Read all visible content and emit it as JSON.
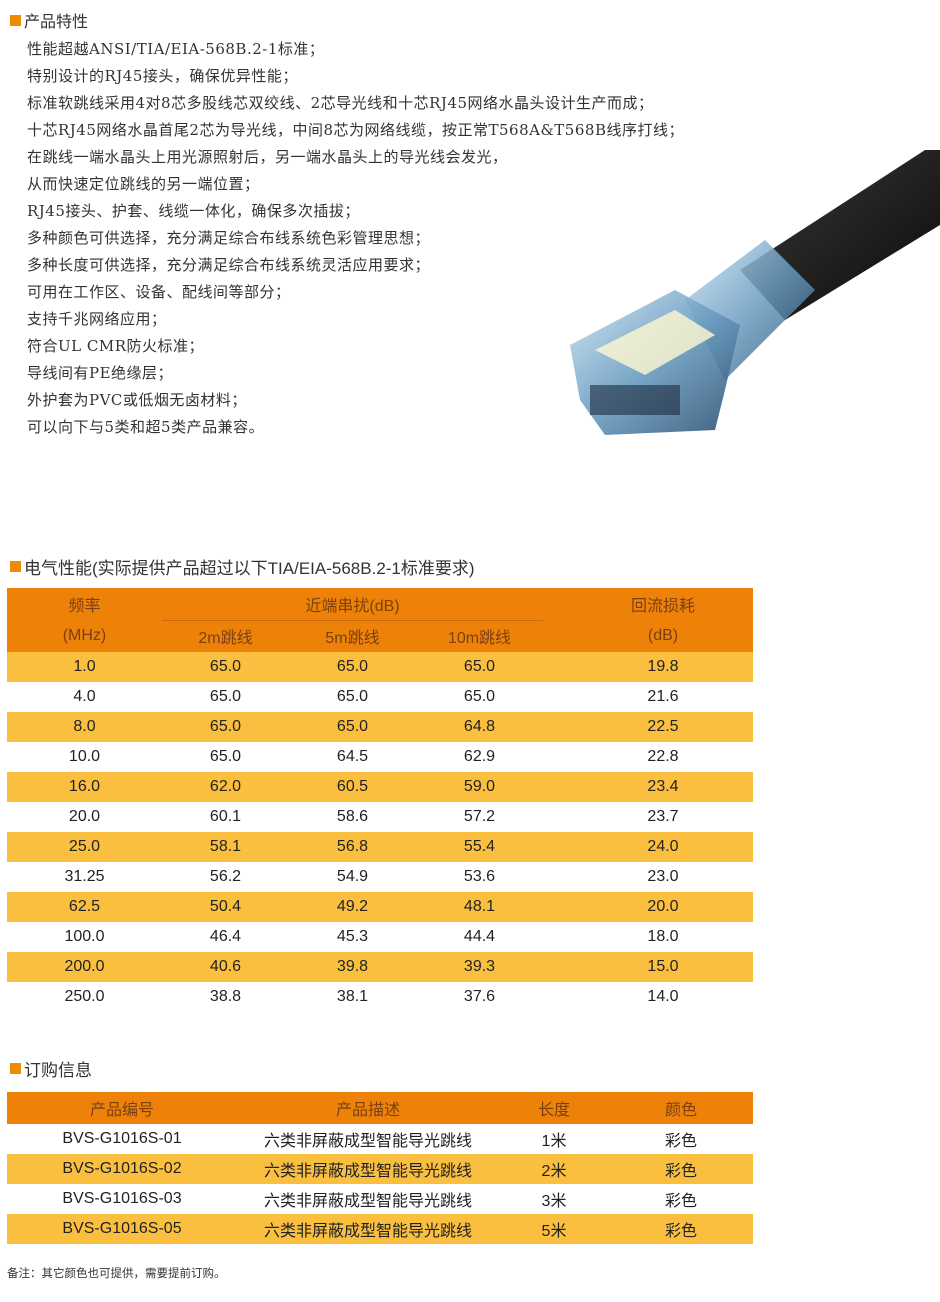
{
  "features": {
    "title": "产品特性",
    "items": [
      "性能超越ANSI/TIA/EIA-568B.2-1标准；",
      "特别设计的RJ45接头，确保优异性能；",
      "标准软跳线采用4对8芯多股线芯双绞线、2芯导光线和十芯RJ45网络水晶头设计生产而成；",
      "十芯RJ45网络水晶首尾2芯为导光线，中间8芯为网络线缆，按正常T568A&T568B线序打线；",
      "在跳线一端水晶头上用光源照射后，另一端水晶头上的导光线会发光，",
      "从而快速定位跳线的另一端位置；",
      "RJ45接头、护套、线缆一体化，确保多次插拔；",
      "多种颜色可供选择，充分满足综合布线系统色彩管理思想；",
      "多种长度可供选择，充分满足综合布线系统灵活应用要求；",
      "可用在工作区、设备、配线间等部分；",
      "支持千兆网络应用；",
      "符合UL CMR防火标准；",
      "导线间有PE绝缘层；",
      "外护套为PVC或低烟无卤材料；",
      "可以向下与5类和超5类产品兼容。"
    ]
  },
  "electrical": {
    "title": "电气性能(实际提供产品超过以下TIA/EIA-568B.2-1标准要求)",
    "header": {
      "freq": "频率",
      "freq_unit": "(MHz)",
      "next": "近端串扰(dB)",
      "c2": "2m跳线",
      "c5": "5m跳线",
      "c10": "10m跳线",
      "rl": "回流损耗",
      "rl_unit": "(dB)"
    },
    "rows": [
      [
        "1.0",
        "65.0",
        "65.0",
        "65.0",
        "19.8"
      ],
      [
        "4.0",
        "65.0",
        "65.0",
        "65.0",
        "21.6"
      ],
      [
        "8.0",
        "65.0",
        "65.0",
        "64.8",
        "22.5"
      ],
      [
        "10.0",
        "65.0",
        "64.5",
        "62.9",
        "22.8"
      ],
      [
        "16.0",
        "62.0",
        "60.5",
        "59.0",
        "23.4"
      ],
      [
        "20.0",
        "60.1",
        "58.6",
        "57.2",
        "23.7"
      ],
      [
        "25.0",
        "58.1",
        "56.8",
        "55.4",
        "24.0"
      ],
      [
        "31.25",
        "56.2",
        "54.9",
        "53.6",
        "23.0"
      ],
      [
        "62.5",
        "50.4",
        "49.2",
        "48.1",
        "20.0"
      ],
      [
        "100.0",
        "46.4",
        "45.3",
        "44.4",
        "18.0"
      ],
      [
        "200.0",
        "40.6",
        "39.8",
        "39.3",
        "15.0"
      ],
      [
        "250.0",
        "38.8",
        "38.1",
        "37.6",
        "14.0"
      ]
    ]
  },
  "ordering": {
    "title": "订购信息",
    "headers": [
      "产品编号",
      "产品描述",
      "长度",
      "颜色"
    ],
    "rows": [
      [
        "BVS-G1016S-01",
        "六类非屏蔽成型智能导光跳线",
        "1米",
        "彩色"
      ],
      [
        "BVS-G1016S-02",
        "六类非屏蔽成型智能导光跳线",
        "2米",
        "彩色"
      ],
      [
        "BVS-G1016S-03",
        "六类非屏蔽成型智能导光跳线",
        "3米",
        "彩色"
      ],
      [
        "BVS-G1016S-05",
        "六类非屏蔽成型智能导光跳线",
        "5米",
        "彩色"
      ]
    ]
  },
  "note": "备注：其它颜色也可提供，需要提前订购。",
  "colors": {
    "accent": "#f08a00",
    "header_bg": "#ee8208",
    "stripe": "#fbbf40"
  }
}
